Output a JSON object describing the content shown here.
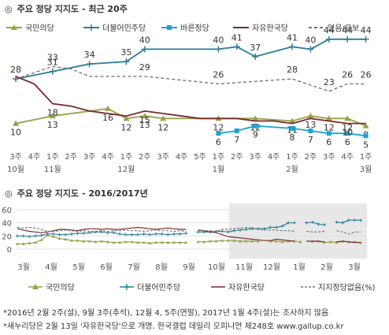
{
  "colors": {
    "kuk": "#9aa04a",
    "min": "#2e7d96",
    "bar": "#1aa3d6",
    "ja": "#7a2a2a",
    "none": "#777777",
    "tick": "#555555",
    "grid": "#e2e2e2",
    "shade": "#e8e8e8"
  },
  "chart_data": [
    {
      "type": "line",
      "title": "주요 정당 지지도 - 최근 20주",
      "title_marker": "◎",
      "legend_position": "top",
      "x_labels": [
        [
          "3주",
          "10월"
        ],
        [
          "4주",
          ""
        ],
        [
          "1주",
          "11월"
        ],
        [
          "2주",
          ""
        ],
        [
          "3주",
          ""
        ],
        [
          "4주",
          ""
        ],
        [
          "1주",
          "12월"
        ],
        [
          "2주",
          ""
        ],
        [
          "3주",
          ""
        ],
        [
          "4주",
          ""
        ],
        [
          "5주",
          ""
        ],
        [
          "1주",
          "1월"
        ],
        [
          "2주",
          ""
        ],
        [
          "3주",
          ""
        ],
        [
          "4주",
          ""
        ],
        [
          "1주",
          "2월"
        ],
        [
          "2주",
          ""
        ],
        [
          "3주",
          ""
        ],
        [
          "4주",
          ""
        ],
        [
          "1주",
          "3월"
        ]
      ],
      "ylim": [
        0,
        50
      ],
      "grid": false,
      "series": [
        {
          "name": "국민의당",
          "color_key": "kuk",
          "marker": "triangle",
          "values": [
            10,
            null,
            13,
            null,
            null,
            16,
            12,
            13,
            12,
            null,
            null,
            12,
            null,
            12,
            null,
            11,
            13,
            12,
            12,
            9
          ],
          "labels": [
            10,
            null,
            13,
            null,
            null,
            16,
            12,
            13,
            12,
            null,
            null,
            12,
            null,
            12,
            null,
            11,
            13,
            12,
            12,
            9
          ]
        },
        {
          "name": "더불어민주당",
          "color_key": "min",
          "marker": "plus",
          "values": [
            28,
            null,
            31,
            null,
            34,
            null,
            35,
            40,
            null,
            null,
            null,
            40,
            41,
            37,
            null,
            41,
            40,
            44,
            44,
            44
          ],
          "labels": [
            28,
            null,
            31,
            null,
            34,
            null,
            35,
            40,
            null,
            null,
            null,
            40,
            41,
            37,
            null,
            41,
            40,
            44,
            44,
            44
          ]
        },
        {
          "name": "바른정당",
          "color_key": "bar",
          "marker": "square",
          "values": [
            null,
            null,
            null,
            null,
            null,
            null,
            null,
            null,
            null,
            null,
            null,
            6,
            7,
            9,
            null,
            8,
            7,
            6,
            6,
            5
          ],
          "labels": [
            null,
            null,
            null,
            null,
            null,
            null,
            null,
            null,
            null,
            null,
            null,
            6,
            7,
            9,
            null,
            8,
            7,
            6,
            6,
            5
          ]
        },
        {
          "name": "자유한국당",
          "color_key": "ja",
          "marker": "none",
          "values": [
            29,
            26,
            18,
            17,
            15,
            14,
            13,
            15,
            14,
            13,
            12,
            12,
            12,
            11,
            11,
            10,
            12,
            11,
            10,
            10
          ],
          "labels": [
            null,
            null,
            18,
            null,
            null,
            null,
            null,
            15,
            null,
            null,
            null,
            null,
            null,
            null,
            null,
            null,
            null,
            null,
            10,
            null
          ]
        },
        {
          "name": "없음/유보",
          "color_key": "none",
          "marker": "none",
          "dashed": true,
          "values": [
            28,
            null,
            33,
            32,
            29,
            29,
            29,
            29,
            null,
            null,
            null,
            26,
            null,
            null,
            null,
            28,
            null,
            23,
            26,
            26
          ],
          "labels": [
            null,
            null,
            33,
            null,
            null,
            null,
            null,
            29,
            null,
            null,
            null,
            26,
            null,
            null,
            null,
            28,
            null,
            23,
            26,
            26
          ]
        }
      ]
    },
    {
      "type": "line",
      "title": "주요 정당 지지도 - 2016/2017년",
      "title_marker": "◎",
      "y_ticks": [
        "60",
        "40",
        "20",
        "0"
      ],
      "ylim": [
        0,
        60
      ],
      "grid": true,
      "months": [
        "3월",
        "4월",
        "5월",
        "6월",
        "7월",
        "8월",
        "9월",
        "10월",
        "11월",
        "12월",
        "1월",
        "2월",
        "3월"
      ],
      "legend_position": "bottom",
      "highlight": "최근 20주",
      "series": [
        {
          "name": "국민의당",
          "color_key": "kuk",
          "marker": "triangle",
          "values": [
            8,
            8,
            9,
            10,
            14,
            21,
            19,
            16,
            15,
            13,
            13,
            12,
            12,
            11,
            12,
            11,
            10,
            10,
            11,
            11,
            10,
            10,
            9,
            10,
            10,
            10,
            10,
            10,
            10,
            null,
            11,
            11,
            12,
            12,
            13,
            13,
            13,
            12,
            12,
            12,
            12,
            null,
            12,
            12,
            11,
            12,
            12,
            11,
            null,
            12,
            12,
            10,
            11,
            10,
            12,
            11,
            11,
            10
          ]
        },
        {
          "name": "더불어민주당",
          "color_key": "min",
          "marker": "plus",
          "values": [
            20,
            20,
            19,
            20,
            21,
            23,
            23,
            22,
            22,
            23,
            24,
            24,
            25,
            26,
            26,
            25,
            25,
            23,
            22,
            22,
            22,
            23,
            22,
            23,
            23,
            22,
            23,
            23,
            24,
            null,
            26,
            26,
            26,
            27,
            27,
            26,
            28,
            29,
            30,
            31,
            31,
            31,
            33,
            33,
            35,
            40,
            40,
            null,
            40,
            41,
            38,
            37,
            null,
            41,
            40,
            44,
            44,
            44
          ]
        },
        {
          "name": "자유한국당",
          "color_key": "ja",
          "marker": "none",
          "values": [
            31,
            29,
            27,
            26,
            25,
            26,
            28,
            30,
            30,
            29,
            28,
            30,
            31,
            31,
            30,
            31,
            30,
            30,
            31,
            32,
            33,
            32,
            31,
            30,
            31,
            32,
            31,
            30,
            30,
            null,
            29,
            28,
            26,
            25,
            22,
            19,
            18,
            17,
            16,
            15,
            14,
            13,
            13,
            15,
            14,
            13,
            12,
            null,
            12,
            12,
            12,
            11,
            null,
            11,
            12,
            11,
            10,
            10
          ]
        },
        {
          "name": "지지정당없음(%)",
          "color_key": "none",
          "marker": "none",
          "dashed": true,
          "values": [
            33,
            32,
            33,
            32,
            30,
            27,
            27,
            28,
            29,
            28,
            27,
            28,
            27,
            27,
            28,
            27,
            28,
            28,
            29,
            28,
            28,
            27,
            28,
            29,
            28,
            28,
            27,
            28,
            27,
            null,
            28,
            28,
            28,
            27,
            30,
            30,
            31,
            32,
            33,
            32,
            30,
            29,
            29,
            29,
            28,
            28,
            27,
            null,
            27,
            26,
            26,
            27,
            null,
            28,
            26,
            23,
            26,
            26
          ]
        }
      ]
    }
  ],
  "footnotes": [
    "*2016년 2월 2주(설), 9월 3주(추석), 12월 4, 5주(연말), 2017년 1월 4주(설)는 조사하지 않음",
    "*새누리당은 2월 13일 '자유한국당'으로 개명. 한국갤럽 데일리 오피니언 제248호 www.gallup.co.kr"
  ]
}
